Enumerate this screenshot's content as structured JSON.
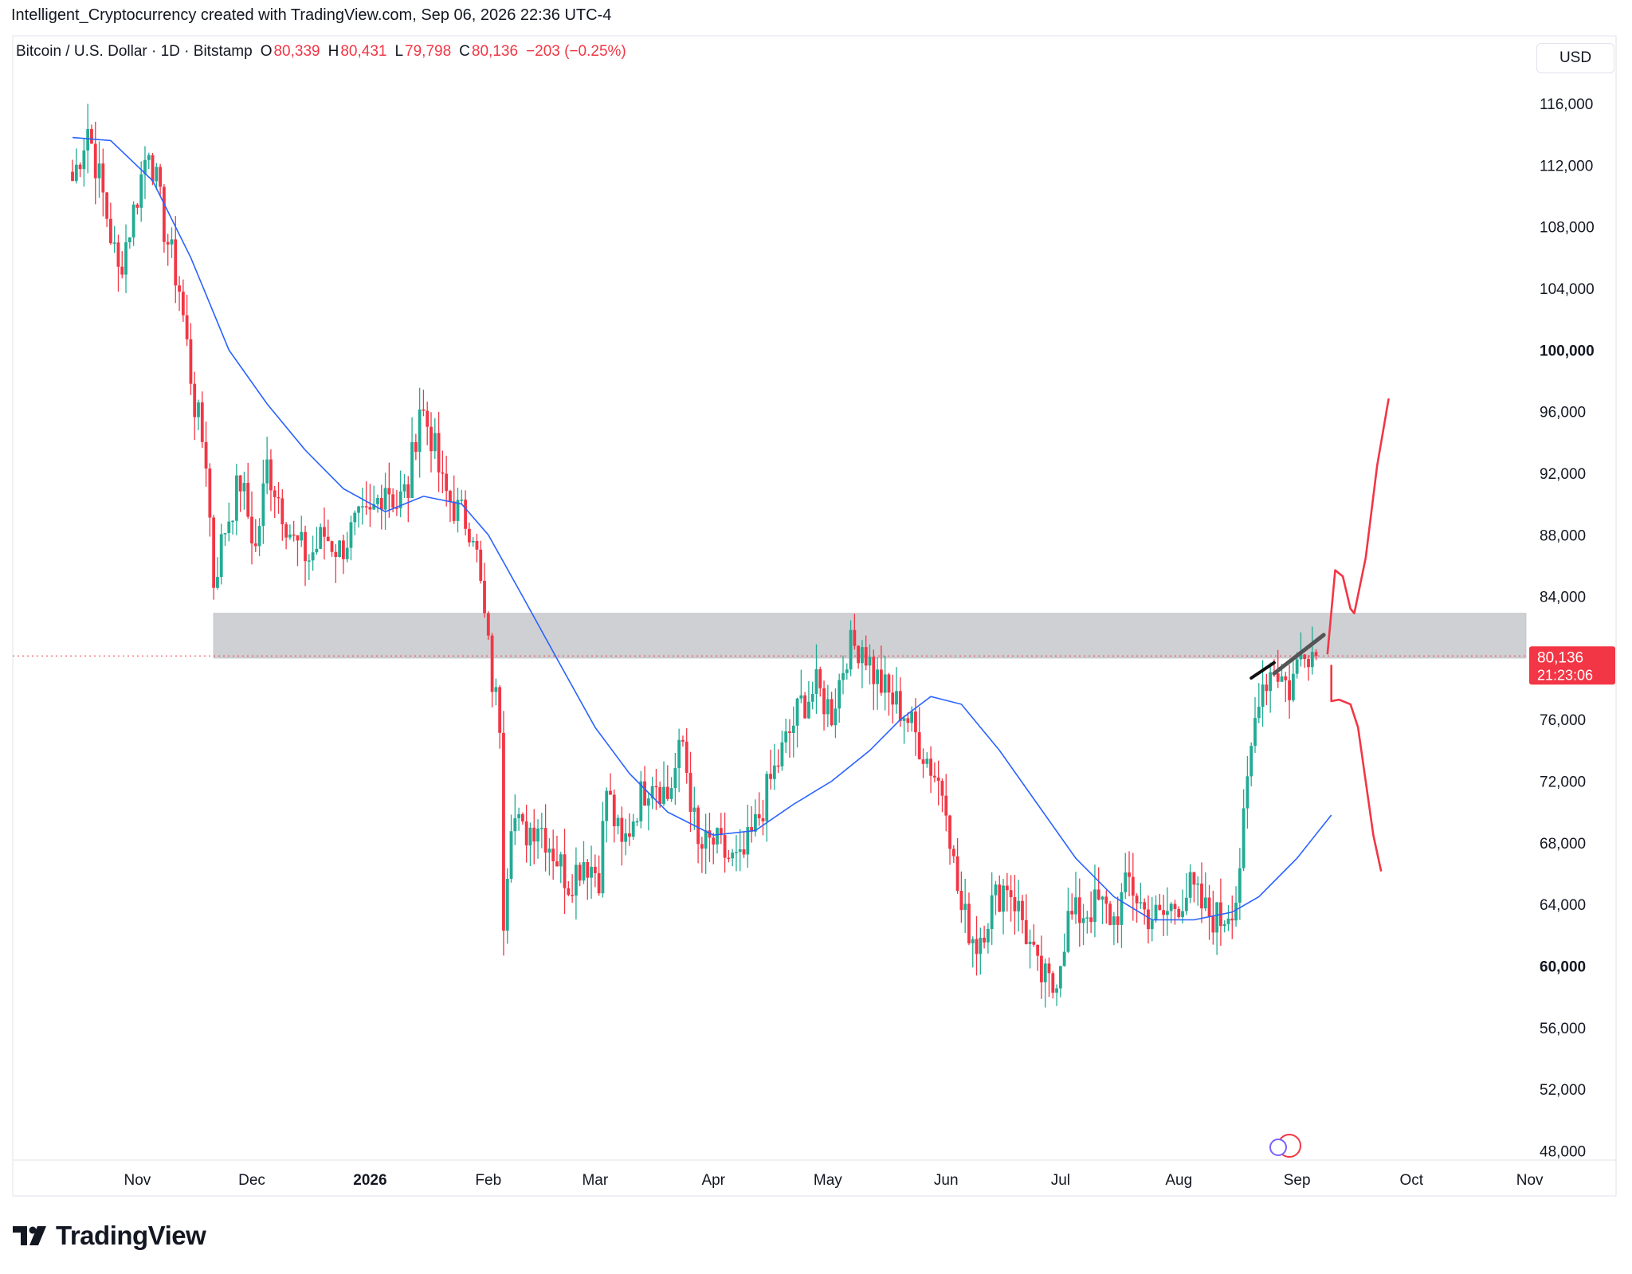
{
  "header": {
    "caption": "Intelligent_Cryptocurrency created with TradingView.com, Sep 06, 2026 22:36 UTC-4"
  },
  "legend": {
    "symbol": "Bitcoin / U.S. Dollar · 1D · Bitstamp",
    "open_label": "O",
    "open": "80,339",
    "high_label": "H",
    "high": "80,431",
    "low_label": "L",
    "low": "79,798",
    "close_label": "C",
    "close": "80,136",
    "change": "−203 (−0.25%)"
  },
  "currency_button": "USD",
  "price_badge": {
    "price": "80,136",
    "countdown": "21:23:06"
  },
  "brand": {
    "name": "TradingView"
  },
  "colors": {
    "up": "#22ab94",
    "down": "#f23645",
    "ma": "#2962ff",
    "zone": "#b2b5be",
    "drawing_red": "#f23645",
    "trendline": "#333333"
  },
  "chart_data": {
    "type": "candlestick",
    "title": "Bitcoin / U.S. Dollar · 1D · Bitstamp",
    "y_axis": {
      "ticks": [
        "116,000",
        "112,000",
        "108,000",
        "104,000",
        "100,000",
        "96,000",
        "92,000",
        "88,000",
        "84,000",
        "80,000",
        "76,000",
        "72,000",
        "68,000",
        "64,000",
        "60,000",
        "56,000",
        "52,000",
        "48,000"
      ],
      "tick_values": [
        116000,
        112000,
        108000,
        104000,
        100000,
        96000,
        92000,
        88000,
        84000,
        80000,
        76000,
        72000,
        68000,
        64000,
        60000,
        56000,
        52000,
        48000
      ],
      "bold_ticks": [
        100000,
        60000
      ],
      "range": [
        47400,
        120400
      ]
    },
    "x_axis": {
      "labels": [
        "Nov",
        "Dec",
        "2026",
        "Feb",
        "Mar",
        "Apr",
        "May",
        "Jun",
        "Jul",
        "Aug",
        "Sep",
        "Oct",
        "Nov"
      ],
      "bold_labels": [
        "2026"
      ],
      "label_dates": [
        "2025-11-01",
        "2025-12-01",
        "2026-01-01",
        "2026-02-01",
        "2026-03-01",
        "2026-04-01",
        "2026-05-01",
        "2026-06-01",
        "2026-07-01",
        "2026-08-01",
        "2026-09-01",
        "2026-10-01",
        "2026-11-01"
      ]
    },
    "series_close_path": [
      [
        "2025-10-15",
        111000
      ],
      [
        "2025-10-19",
        114500
      ],
      [
        "2025-10-23",
        110000
      ],
      [
        "2025-10-27",
        105000
      ],
      [
        "2025-10-31",
        109000
      ],
      [
        "2025-11-04",
        113500
      ],
      [
        "2025-11-08",
        108000
      ],
      [
        "2025-11-12",
        104000
      ],
      [
        "2025-11-16",
        96500
      ],
      [
        "2025-11-19",
        93000
      ],
      [
        "2025-11-21",
        85000
      ],
      [
        "2025-11-24",
        88500
      ],
      [
        "2025-11-28",
        91500
      ],
      [
        "2025-12-02",
        87000
      ],
      [
        "2025-12-05",
        92500
      ],
      [
        "2025-12-08",
        90500
      ],
      [
        "2025-12-12",
        87500
      ],
      [
        "2025-12-16",
        86500
      ],
      [
        "2025-12-20",
        88000
      ],
      [
        "2025-12-24",
        87000
      ],
      [
        "2025-12-28",
        88500
      ],
      [
        "2026-01-01",
        89000
      ],
      [
        "2026-01-05",
        91500
      ],
      [
        "2026-01-08",
        90000
      ],
      [
        "2026-01-11",
        91000
      ],
      [
        "2026-01-14",
        96500
      ],
      [
        "2026-01-17",
        94500
      ],
      [
        "2026-01-20",
        91000
      ],
      [
        "2026-01-24",
        89500
      ],
      [
        "2026-01-28",
        88500
      ],
      [
        "2026-01-31",
        82500
      ],
      [
        "2026-02-02",
        78500
      ],
      [
        "2026-02-04",
        76000
      ],
      [
        "2026-02-05",
        63500
      ],
      [
        "2026-02-07",
        70000
      ],
      [
        "2026-02-10",
        68500
      ],
      [
        "2026-02-14",
        69500
      ],
      [
        "2026-02-18",
        67500
      ],
      [
        "2026-02-22",
        65500
      ],
      [
        "2026-02-26",
        67000
      ],
      [
        "2026-03-02",
        66000
      ],
      [
        "2026-03-04",
        71500
      ],
      [
        "2026-03-08",
        67500
      ],
      [
        "2026-03-12",
        70500
      ],
      [
        "2026-03-16",
        72500
      ],
      [
        "2026-03-20",
        71000
      ],
      [
        "2026-03-24",
        74500
      ],
      [
        "2026-03-28",
        67500
      ],
      [
        "2026-04-01",
        68000
      ],
      [
        "2026-04-05",
        67000
      ],
      [
        "2026-04-08",
        66500
      ],
      [
        "2026-04-12",
        69000
      ],
      [
        "2026-04-16",
        72000
      ],
      [
        "2026-04-20",
        74500
      ],
      [
        "2026-04-24",
        77000
      ],
      [
        "2026-04-28",
        78000
      ],
      [
        "2026-05-02",
        76500
      ],
      [
        "2026-05-06",
        80500
      ],
      [
        "2026-05-10",
        81000
      ],
      [
        "2026-05-13",
        79000
      ],
      [
        "2026-05-17",
        77500
      ],
      [
        "2026-05-21",
        76500
      ],
      [
        "2026-05-25",
        74500
      ],
      [
        "2026-05-28",
        73000
      ],
      [
        "2026-06-01",
        71000
      ],
      [
        "2026-06-03",
        66500
      ],
      [
        "2026-06-05",
        63500
      ],
      [
        "2026-06-09",
        61500
      ],
      [
        "2026-06-13",
        64000
      ],
      [
        "2026-06-17",
        65500
      ],
      [
        "2026-06-21",
        63000
      ],
      [
        "2026-06-25",
        59500
      ],
      [
        "2026-06-29",
        58500
      ],
      [
        "2026-07-03",
        63000
      ],
      [
        "2026-07-07",
        63500
      ],
      [
        "2026-07-11",
        64000
      ],
      [
        "2026-07-15",
        63000
      ],
      [
        "2026-07-19",
        65500
      ],
      [
        "2026-07-23",
        63500
      ],
      [
        "2026-07-27",
        63000
      ],
      [
        "2026-07-31",
        64000
      ],
      [
        "2026-08-04",
        65000
      ],
      [
        "2026-08-08",
        63500
      ],
      [
        "2026-08-12",
        63000
      ],
      [
        "2026-08-16",
        64500
      ],
      [
        "2026-08-18",
        69000
      ],
      [
        "2026-08-20",
        74000
      ],
      [
        "2026-08-22",
        78000
      ],
      [
        "2026-08-26",
        79500
      ],
      [
        "2026-08-30",
        78000
      ],
      [
        "2026-09-03",
        81000
      ],
      [
        "2026-09-06",
        80136
      ]
    ],
    "ma_path": [
      [
        "2025-10-15",
        113800
      ],
      [
        "2025-10-25",
        113600
      ],
      [
        "2025-11-05",
        111000
      ],
      [
        "2025-11-15",
        106000
      ],
      [
        "2025-11-25",
        100000
      ],
      [
        "2025-12-05",
        96500
      ],
      [
        "2025-12-15",
        93500
      ],
      [
        "2025-12-25",
        91000
      ],
      [
        "2026-01-05",
        89500
      ],
      [
        "2026-01-15",
        90500
      ],
      [
        "2026-01-25",
        90000
      ],
      [
        "2026-02-01",
        88000
      ],
      [
        "2026-02-10",
        84000
      ],
      [
        "2026-02-20",
        79500
      ],
      [
        "2026-03-01",
        75500
      ],
      [
        "2026-03-10",
        72500
      ],
      [
        "2026-03-20",
        70000
      ],
      [
        "2026-04-01",
        68500
      ],
      [
        "2026-04-12",
        68800
      ],
      [
        "2026-04-22",
        70500
      ],
      [
        "2026-05-02",
        72000
      ],
      [
        "2026-05-12",
        74000
      ],
      [
        "2026-05-20",
        76000
      ],
      [
        "2026-05-28",
        77500
      ],
      [
        "2026-06-05",
        77000
      ],
      [
        "2026-06-15",
        74000
      ],
      [
        "2026-06-25",
        70500
      ],
      [
        "2026-07-05",
        67000
      ],
      [
        "2026-07-15",
        64500
      ],
      [
        "2026-07-25",
        63000
      ],
      [
        "2026-08-05",
        63000
      ],
      [
        "2026-08-15",
        63500
      ],
      [
        "2026-08-22",
        64500
      ],
      [
        "2026-09-01",
        67000
      ],
      [
        "2026-09-10",
        69800
      ]
    ],
    "annotations": {
      "resistance_zone": {
        "from_date": "2025-11-21",
        "to_date": "2026-10-31",
        "low": 80000,
        "high": 82900
      },
      "current_price_line": 80136,
      "trendline_gray": {
        "from": [
          "2026-08-26",
          79000
        ],
        "to": [
          "2026-09-08",
          81500
        ]
      },
      "trendline_black": {
        "from": [
          "2026-08-20",
          78700
        ],
        "to": [
          "2026-08-26",
          79700
        ]
      },
      "bull_scenario": [
        [
          "2026-09-09",
          80300
        ],
        [
          "2026-09-10",
          83000
        ],
        [
          "2026-09-11",
          85700
        ],
        [
          "2026-09-13",
          85300
        ],
        [
          "2026-09-15",
          83200
        ],
        [
          "2026-09-16",
          82900
        ],
        [
          "2026-09-19",
          86500
        ],
        [
          "2026-09-22",
          92500
        ],
        [
          "2026-09-25",
          96800
        ]
      ],
      "bear_scenario": [
        [
          "2026-09-10",
          79500
        ],
        [
          "2026-09-10",
          77200
        ],
        [
          "2026-09-12",
          77300
        ],
        [
          "2026-09-15",
          77000
        ],
        [
          "2026-09-17",
          75500
        ],
        [
          "2026-09-19",
          72000
        ],
        [
          "2026-09-21",
          68500
        ],
        [
          "2026-09-23",
          66200
        ]
      ]
    }
  }
}
